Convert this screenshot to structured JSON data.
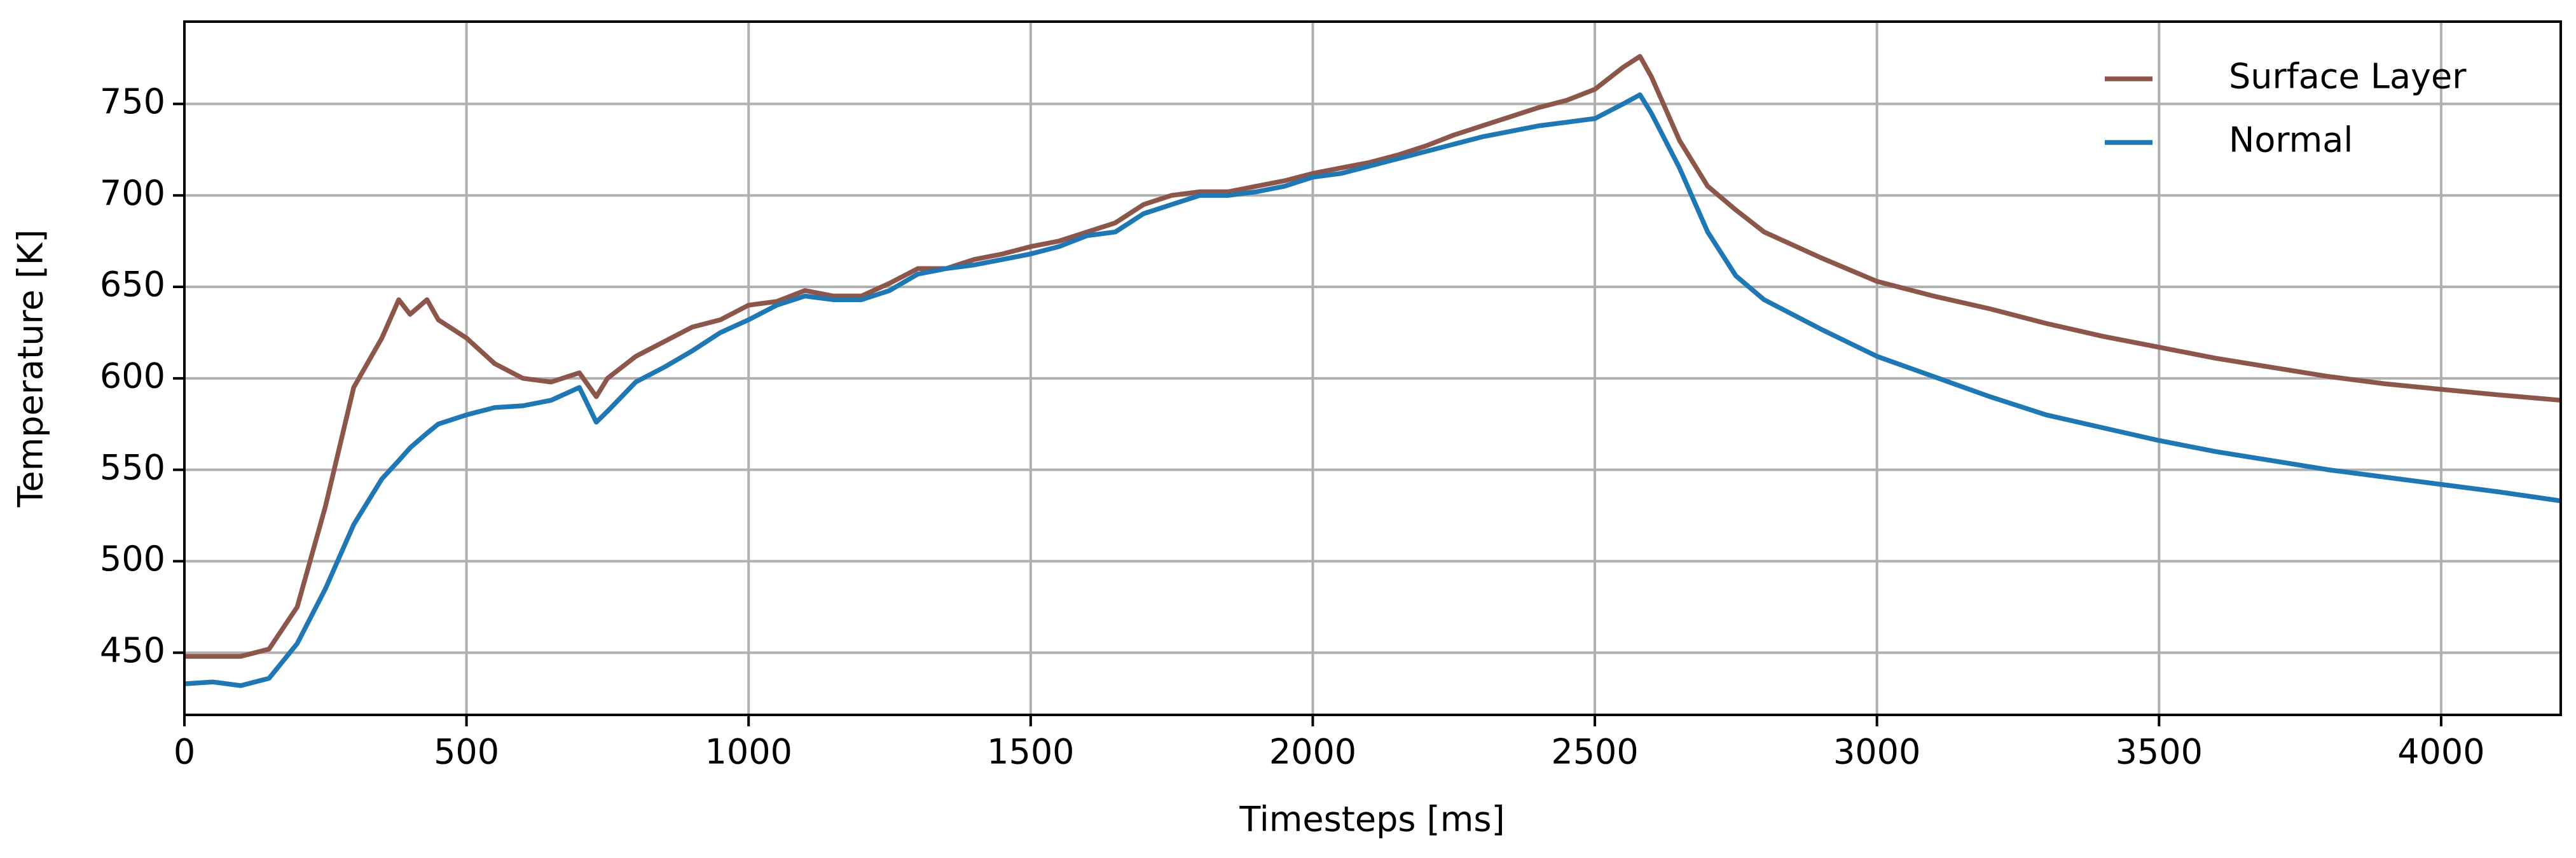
{
  "chart_data": {
    "type": "line",
    "x_label": "Timesteps [ms]",
    "y_label": "Temperature [K]",
    "x": [
      0,
      50,
      100,
      150,
      200,
      250,
      300,
      350,
      380,
      400,
      430,
      450,
      500,
      550,
      600,
      650,
      700,
      730,
      750,
      800,
      850,
      900,
      950,
      1000,
      1050,
      1100,
      1150,
      1200,
      1250,
      1300,
      1350,
      1400,
      1450,
      1500,
      1550,
      1600,
      1650,
      1700,
      1750,
      1800,
      1850,
      1900,
      1950,
      2000,
      2050,
      2100,
      2150,
      2200,
      2250,
      2300,
      2350,
      2400,
      2450,
      2500,
      2550,
      2580,
      2600,
      2650,
      2700,
      2750,
      2800,
      2900,
      3000,
      3100,
      3200,
      3300,
      3400,
      3500,
      3600,
      3700,
      3800,
      3900,
      4000,
      4100,
      4212
    ],
    "series": [
      {
        "name": "Surface Layer",
        "color": "#8c564b",
        "values": [
          448,
          448,
          448,
          452,
          475,
          530,
          595,
          622,
          643,
          635,
          643,
          632,
          622,
          608,
          600,
          598,
          603,
          590,
          600,
          612,
          620,
          628,
          632,
          640,
          642,
          648,
          645,
          645,
          652,
          660,
          660,
          665,
          668,
          672,
          675,
          680,
          685,
          695,
          700,
          702,
          702,
          705,
          708,
          712,
          715,
          718,
          722,
          727,
          733,
          738,
          743,
          748,
          752,
          758,
          770,
          776,
          765,
          730,
          705,
          692,
          680,
          666,
          653,
          645,
          638,
          630,
          623,
          617,
          611,
          606,
          601,
          597,
          594,
          591,
          588
        ]
      },
      {
        "name": "Normal",
        "color": "#1f77b4",
        "values": [
          433,
          434,
          432,
          436,
          455,
          485,
          520,
          545,
          555,
          562,
          570,
          575,
          580,
          584,
          585,
          588,
          595,
          576,
          582,
          598,
          606,
          615,
          625,
          632,
          640,
          645,
          643,
          643,
          648,
          657,
          660,
          662,
          665,
          668,
          672,
          678,
          680,
          690,
          695,
          700,
          700,
          702,
          705,
          710,
          712,
          716,
          720,
          724,
          728,
          732,
          735,
          738,
          740,
          742,
          750,
          755,
          745,
          715,
          680,
          656,
          643,
          627,
          612,
          601,
          590,
          580,
          573,
          566,
          560,
          555,
          550,
          546,
          542,
          538,
          533
        ]
      }
    ],
    "xlim": [
      0,
      4212
    ],
    "ylim": [
      416,
      795
    ],
    "xticks": [
      0,
      500,
      1000,
      1500,
      2000,
      2500,
      3000,
      3500,
      4000
    ],
    "yticks": [
      450,
      500,
      550,
      600,
      650,
      700,
      750
    ],
    "grid": true,
    "legend": "upper right"
  }
}
